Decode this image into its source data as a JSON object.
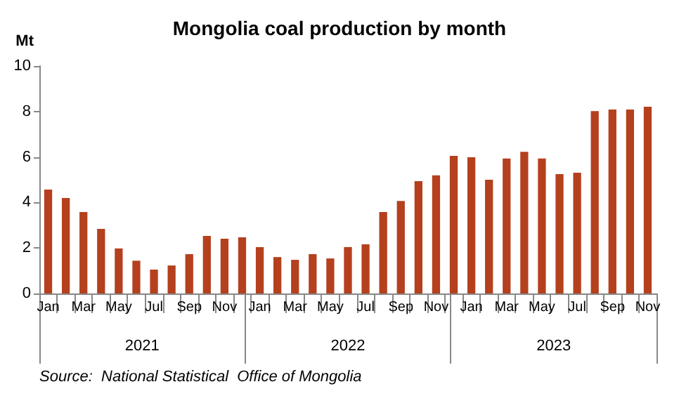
{
  "chart_data": {
    "type": "bar",
    "title": "Mongolia coal production by month",
    "ylabel": "Mt",
    "categories": [
      "Jan",
      null,
      "Mar",
      null,
      "May",
      null,
      "Jul",
      null,
      "Sep",
      null,
      "Nov",
      null,
      "Jan",
      null,
      "Mar",
      null,
      "May",
      null,
      "Jul",
      null,
      "Sep",
      null,
      "Nov",
      null,
      "Jan",
      null,
      "Mar",
      null,
      "May",
      null,
      "Jul",
      null,
      "Sep",
      null,
      "Nov"
    ],
    "values": [
      4.57,
      4.2,
      3.58,
      2.84,
      1.98,
      1.44,
      1.05,
      1.23,
      1.73,
      2.53,
      2.41,
      2.47,
      2.04,
      1.6,
      1.48,
      1.73,
      1.54,
      2.04,
      2.16,
      3.58,
      4.07,
      4.94,
      5.19,
      6.05,
      5.99,
      5.0,
      5.93,
      6.23,
      5.93,
      5.25,
      5.31,
      8.02,
      8.09,
      8.09,
      8.21
    ],
    "color": "#b5401e",
    "ylim": [
      0,
      10
    ],
    "yticks": [
      0,
      2,
      4,
      6,
      8,
      10
    ],
    "grid": false,
    "annotations": [
      "2021",
      "2022",
      "2023",
      "Source:  National Statistical  Office of Mongolia"
    ]
  }
}
